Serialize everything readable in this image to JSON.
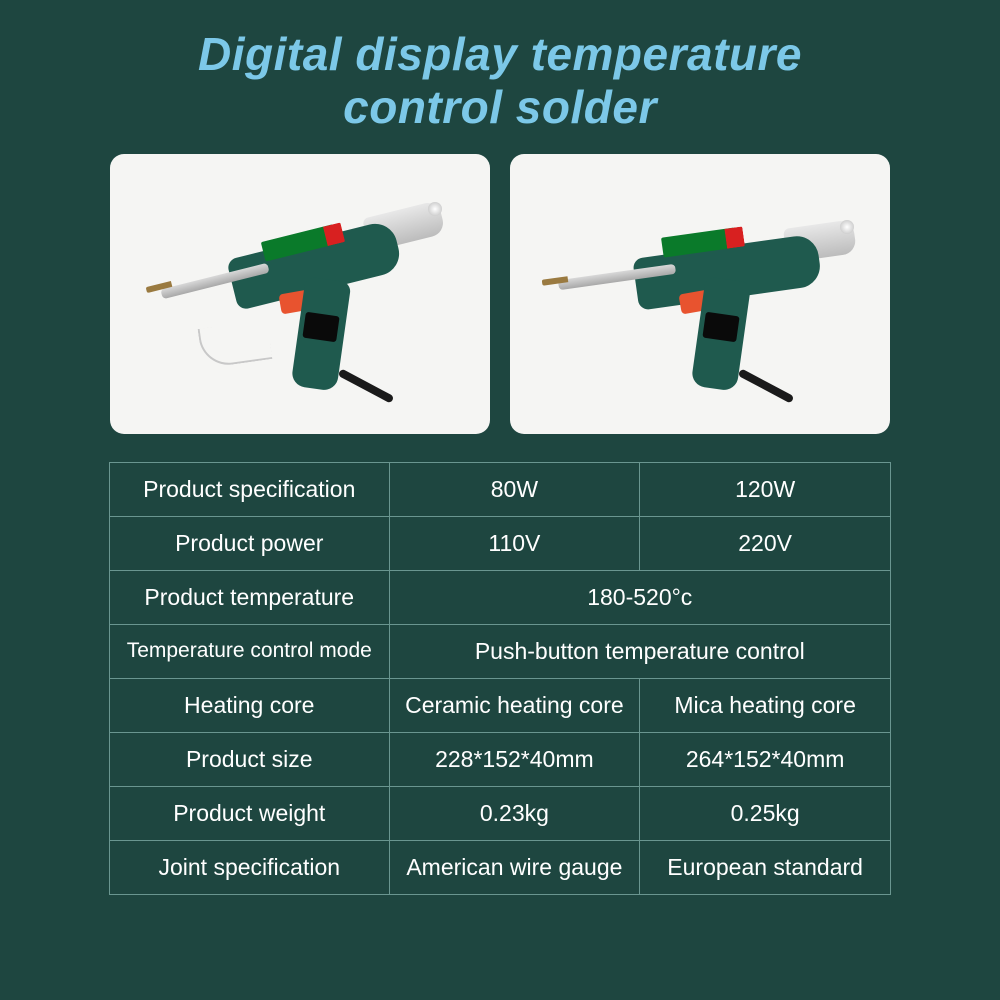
{
  "title_line1": "Digital display temperature",
  "title_line2": "control solder",
  "colors": {
    "background": "#1e4640",
    "title": "#7cc8e8",
    "card_bg": "#f5f5f3",
    "table_border": "#6a9690",
    "text": "#ffffff",
    "gun_body": "#1f5a4e",
    "gun_trigger": "#e8532f"
  },
  "table": {
    "rows": [
      {
        "label": "Product specification",
        "col1": "80W",
        "col2": "120W",
        "span": false
      },
      {
        "label": "Product power",
        "col1": "110V",
        "col2": "220V",
        "span": false
      },
      {
        "label": "Product temperature",
        "col1": "180-520°c",
        "col2": "",
        "span": true
      },
      {
        "label": "Temperature control mode",
        "col1": "Push-button temperature control",
        "col2": "",
        "span": true
      },
      {
        "label": "Heating core",
        "col1": "Ceramic heating core",
        "col2": "Mica heating core",
        "span": false
      },
      {
        "label": "Product size",
        "col1": "228*152*40mm",
        "col2": "264*152*40mm",
        "span": false
      },
      {
        "label": "Product weight",
        "col1": "0.23kg",
        "col2": "0.25kg",
        "span": false
      },
      {
        "label": "Joint specification",
        "col1": "American wire gauge",
        "col2": "European standard",
        "span": false
      }
    ]
  }
}
